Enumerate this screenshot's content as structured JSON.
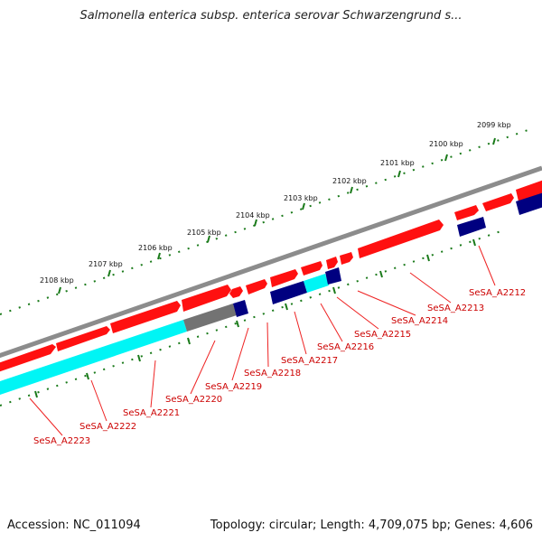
{
  "title": "Salmonella enterica subsp. enterica serovar Schwarzengrund s...",
  "footer": {
    "accession": "Accession: NC_011094",
    "topology": "Topology: circular; Length: 4,709,075 bp; Genes: 4,606"
  },
  "colors": {
    "backbone": "#8c8c8c",
    "cds_forward": "#ff0000",
    "cds_forward_highlight": "#ff8080",
    "cds_reverse": "#ff0000",
    "blast_hit_cyan": "#00ffff",
    "blast_hit_navy": "#000080",
    "gray_feature": "#737373",
    "tick_mark": "#008000",
    "gene_label": "#cc0000"
  },
  "tick_labels": [
    "2108 kbp",
    "2107 kbp",
    "2106 kbp",
    "2105 kbp",
    "2104 kbp",
    "2103 kbp",
    "2102 kbp",
    "2101 kbp",
    "2100 kbp",
    "2099 kbp"
  ],
  "gene_labels": [
    "SeSA_A2223",
    "SeSA_A2222",
    "SeSA_A2221",
    "SeSA_A2220",
    "SeSA_A2219",
    "SeSA_A2218",
    "SeSA_A2217",
    "SeSA_A2216",
    "SeSA_A2215",
    "SeSA_A2214",
    "SeSA_A2213",
    "SeSA_A2212"
  ]
}
